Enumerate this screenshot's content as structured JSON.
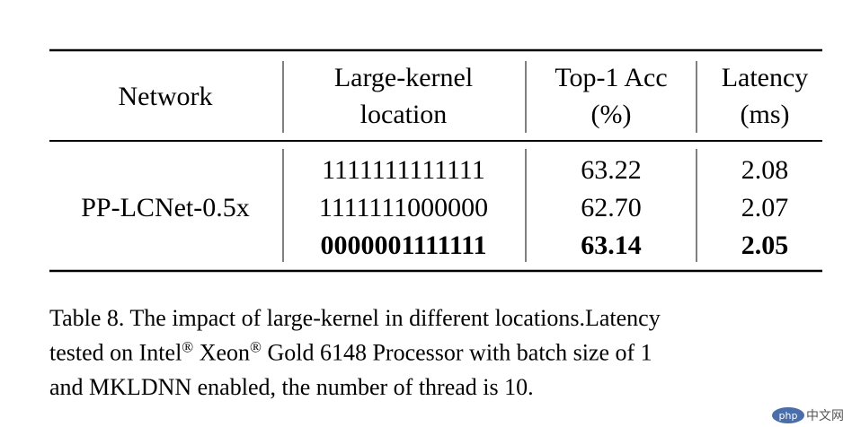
{
  "table": {
    "header": [
      [
        "Network"
      ],
      [
        "Large-kernel",
        "location"
      ],
      [
        "Top-1 Acc",
        "(%)"
      ],
      [
        "Latency",
        "(ms)"
      ]
    ],
    "network": "PP-LCNet-0.5x",
    "rows": [
      {
        "location": "1111111111111",
        "acc": "63.22",
        "latency": "2.08",
        "bold": false
      },
      {
        "location": "1111111000000",
        "acc": "62.70",
        "latency": "2.07",
        "bold": false
      },
      {
        "location": "0000001111111",
        "acc": "63.14",
        "latency": "2.05",
        "bold": true
      }
    ]
  },
  "caption": {
    "lines": [
      [
        {
          "text": "Table 8. The impact of large-kernel in different locations.Latency"
        }
      ],
      [
        {
          "text": "tested on Intel"
        },
        {
          "text": "®",
          "sup": true
        },
        {
          "text": " Xeon"
        },
        {
          "text": "®",
          "sup": true
        },
        {
          "text": " Gold 6148 Processor with batch size of 1"
        }
      ],
      [
        {
          "text": "and MKLDNN enabled, the number of thread is 10."
        }
      ]
    ]
  },
  "watermark": {
    "logo": "php",
    "text": "中文网"
  }
}
